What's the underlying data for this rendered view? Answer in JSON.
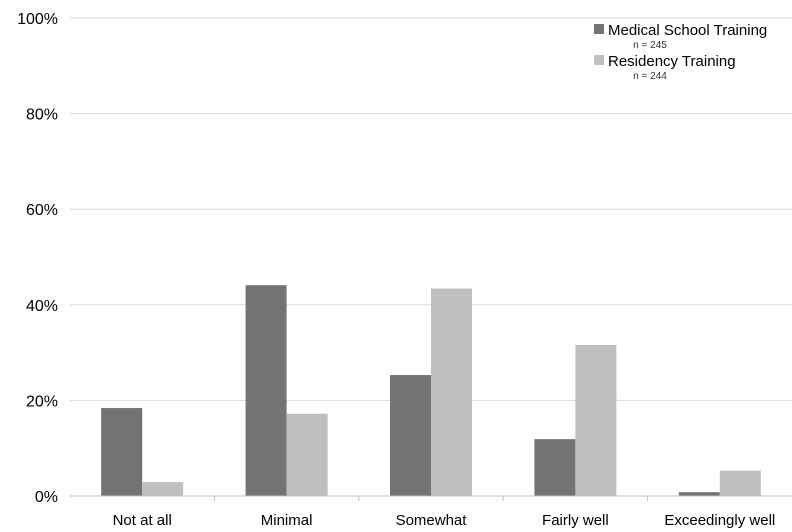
{
  "chart_data": {
    "type": "bar",
    "categories": [
      "Not at all",
      "Minimal",
      "Somewhat",
      "Fairly well",
      "Exceedingly well"
    ],
    "series": [
      {
        "name": "Medical School Training",
        "note": "n = 245",
        "color": "#737373",
        "values": [
          18.4,
          44.1,
          25.3,
          11.9,
          0.8
        ]
      },
      {
        "name": "Residency Training",
        "note": "n = 244",
        "color": "#bfbfbf",
        "values": [
          2.9,
          17.2,
          43.4,
          31.6,
          5.3
        ]
      }
    ],
    "ylim": [
      0,
      100
    ],
    "yticks": [
      0,
      20,
      40,
      60,
      80,
      100
    ],
    "ytick_labels": [
      "0%",
      "20%",
      "40%",
      "60%",
      "80%",
      "100%"
    ],
    "grid": true,
    "legend_position": "top-right",
    "title": "",
    "xlabel": "",
    "ylabel": ""
  }
}
